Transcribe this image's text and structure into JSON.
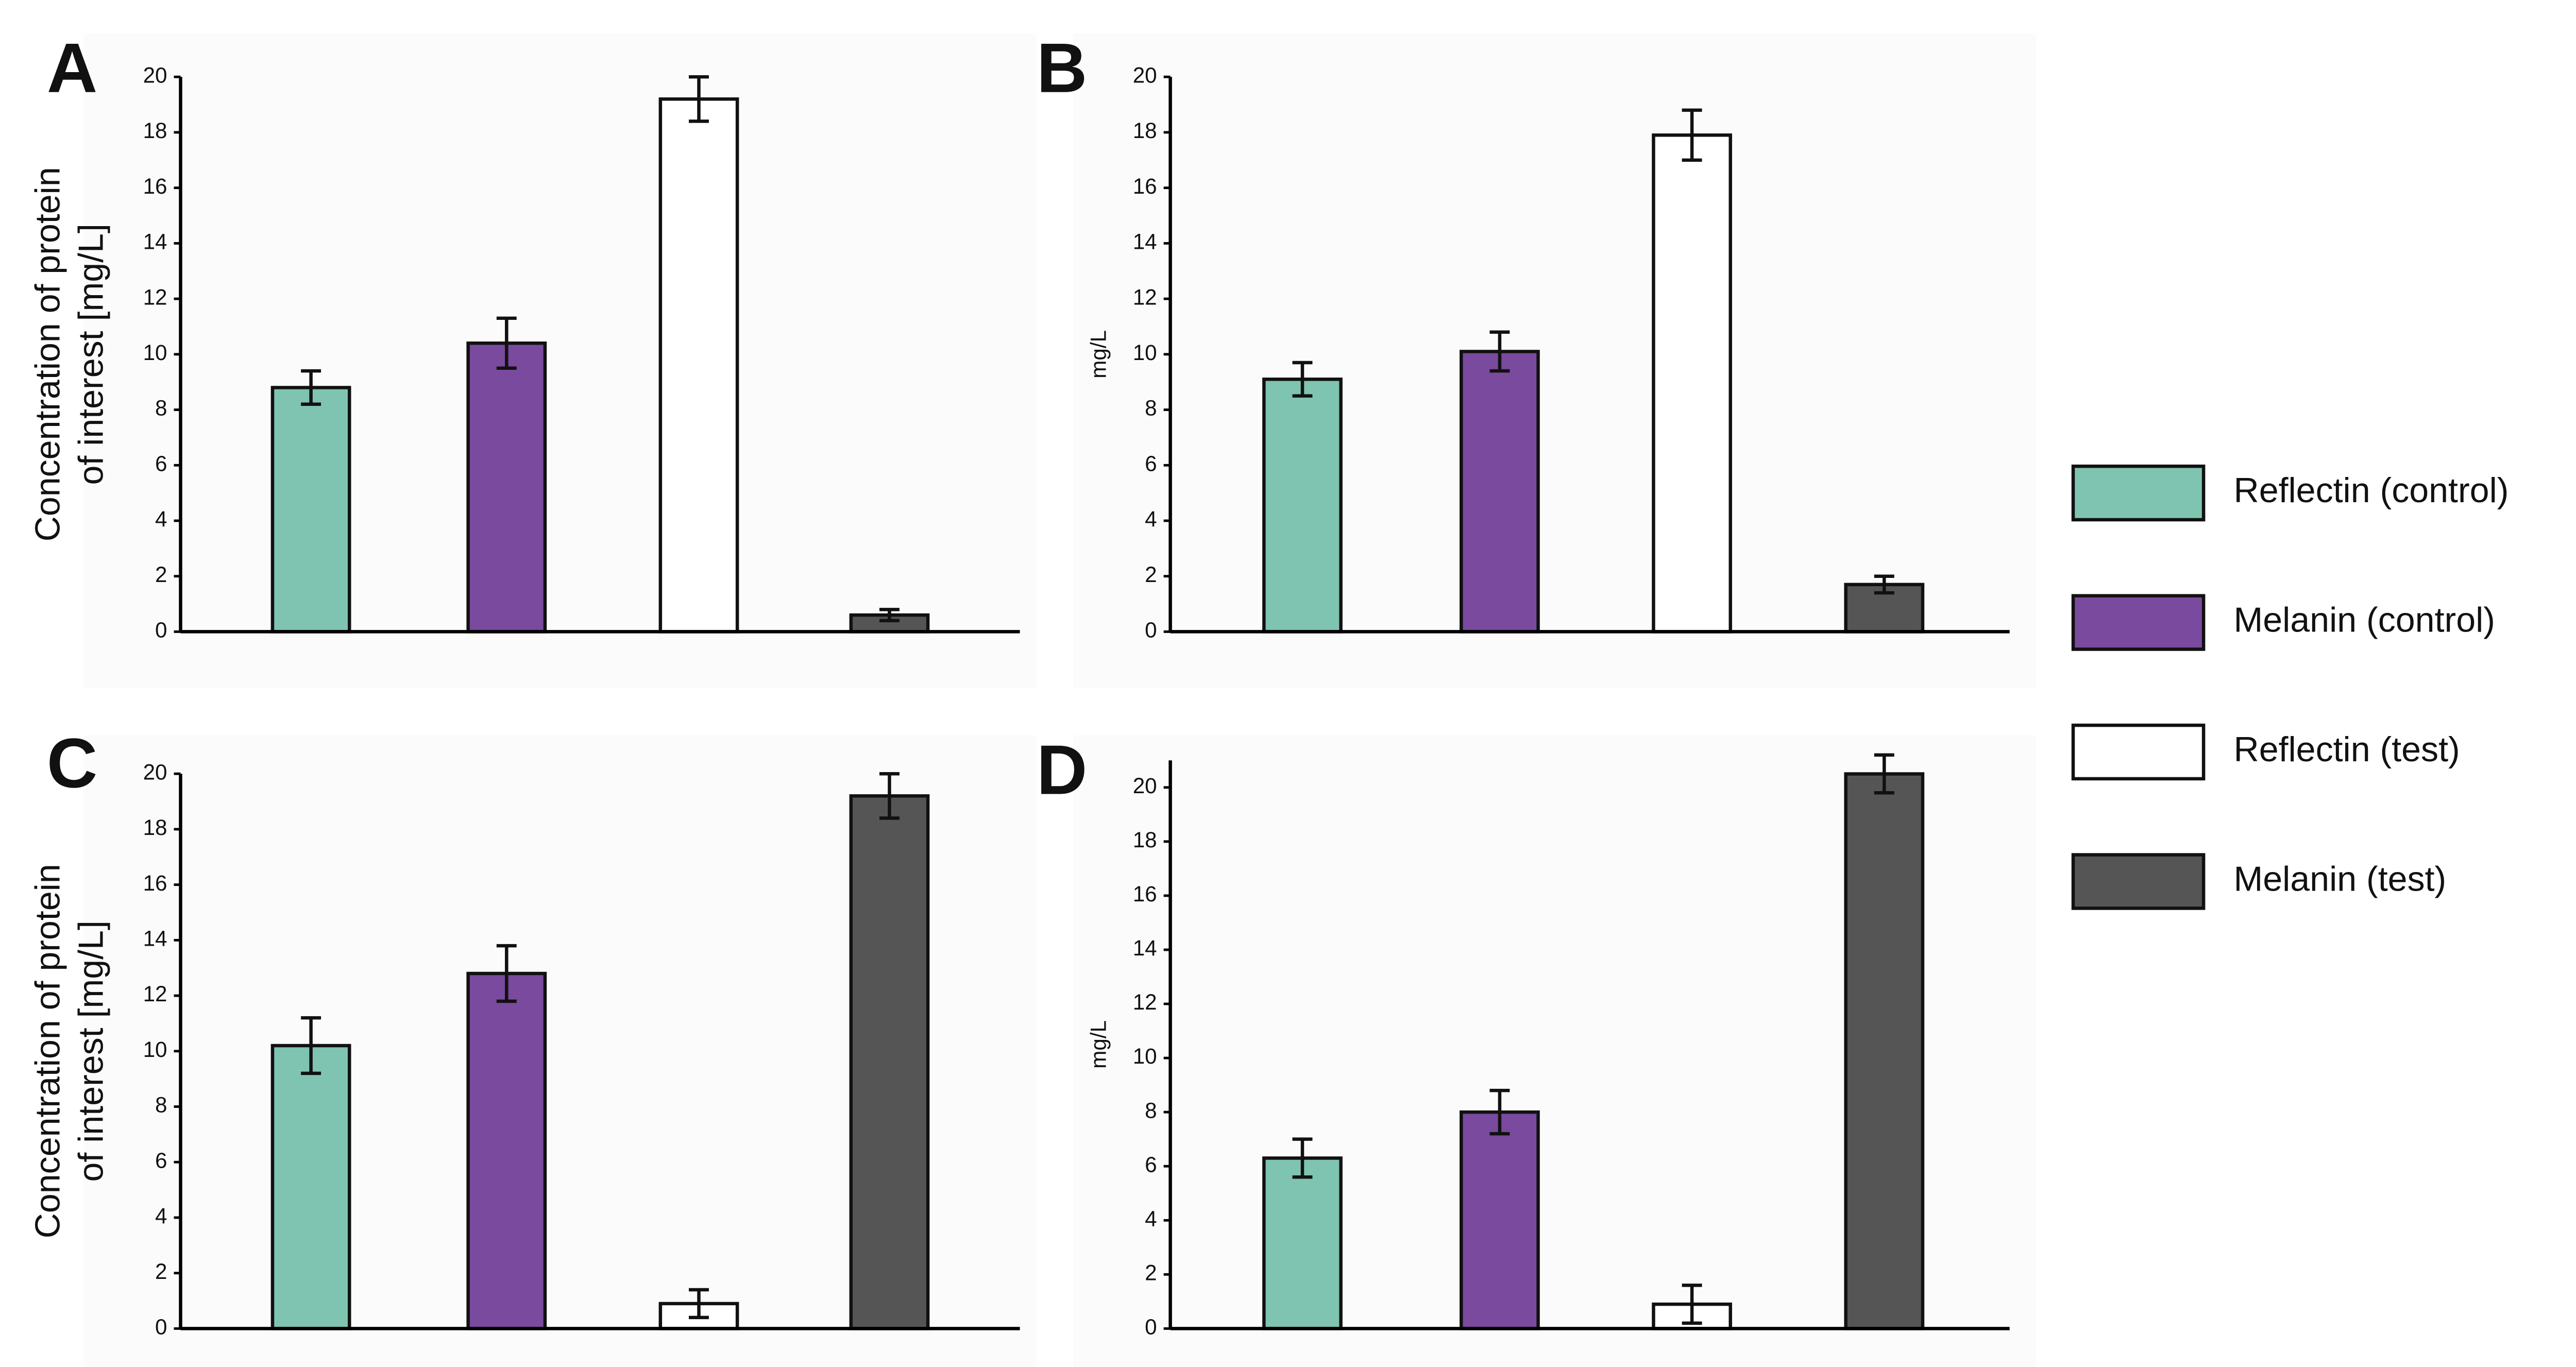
{
  "chart_data": [
    {
      "type": "bar",
      "label": "A",
      "ylabel": [
        "Concentration of protein",
        "of interest [mg/L]"
      ],
      "values": [
        8.8,
        10.4,
        19.2,
        0.6
      ],
      "errors": [
        0.6,
        0.9,
        0.8,
        0.2
      ],
      "ylim": [
        0,
        20
      ],
      "yticks": [
        0,
        2,
        4,
        6,
        8,
        10,
        12,
        14,
        16,
        18,
        20
      ]
    },
    {
      "type": "bar",
      "label": "B",
      "ylabel": [
        "mg/L"
      ],
      "values": [
        9.1,
        10.1,
        17.9,
        1.7
      ],
      "errors": [
        0.6,
        0.7,
        0.9,
        0.3
      ],
      "ylim": [
        0,
        20
      ],
      "yticks": [
        0,
        2,
        4,
        6,
        8,
        10,
        12,
        14,
        16,
        18,
        20
      ]
    },
    {
      "type": "bar",
      "label": "C",
      "ylabel": [
        "Concentration of protein",
        "of interest [mg/L]"
      ],
      "values": [
        10.2,
        12.8,
        0.9,
        19.2
      ],
      "errors": [
        1.0,
        1.0,
        0.5,
        0.8
      ],
      "ylim": [
        0,
        20
      ],
      "yticks": [
        0,
        2,
        4,
        6,
        8,
        10,
        12,
        14,
        16,
        18,
        20
      ]
    },
    {
      "type": "bar",
      "label": "D",
      "ylabel": [
        "mg/L"
      ],
      "values": [
        6.3,
        8.0,
        0.9,
        20.5
      ],
      "errors": [
        0.7,
        0.8,
        0.7,
        0.7
      ],
      "ylim": [
        0,
        21
      ],
      "yticks": [
        0,
        2,
        4,
        6,
        8,
        10,
        12,
        14,
        16,
        18,
        20
      ]
    }
  ],
  "legend": [
    {
      "name": "Reflectin (control)",
      "color": "#7fc4b0"
    },
    {
      "name": "Melanin (control)",
      "color": "#7a4a9e"
    },
    {
      "name": "Reflectin (test)",
      "color": "#ffffff"
    },
    {
      "name": "Melanin (test)",
      "color": "#555555"
    }
  ]
}
